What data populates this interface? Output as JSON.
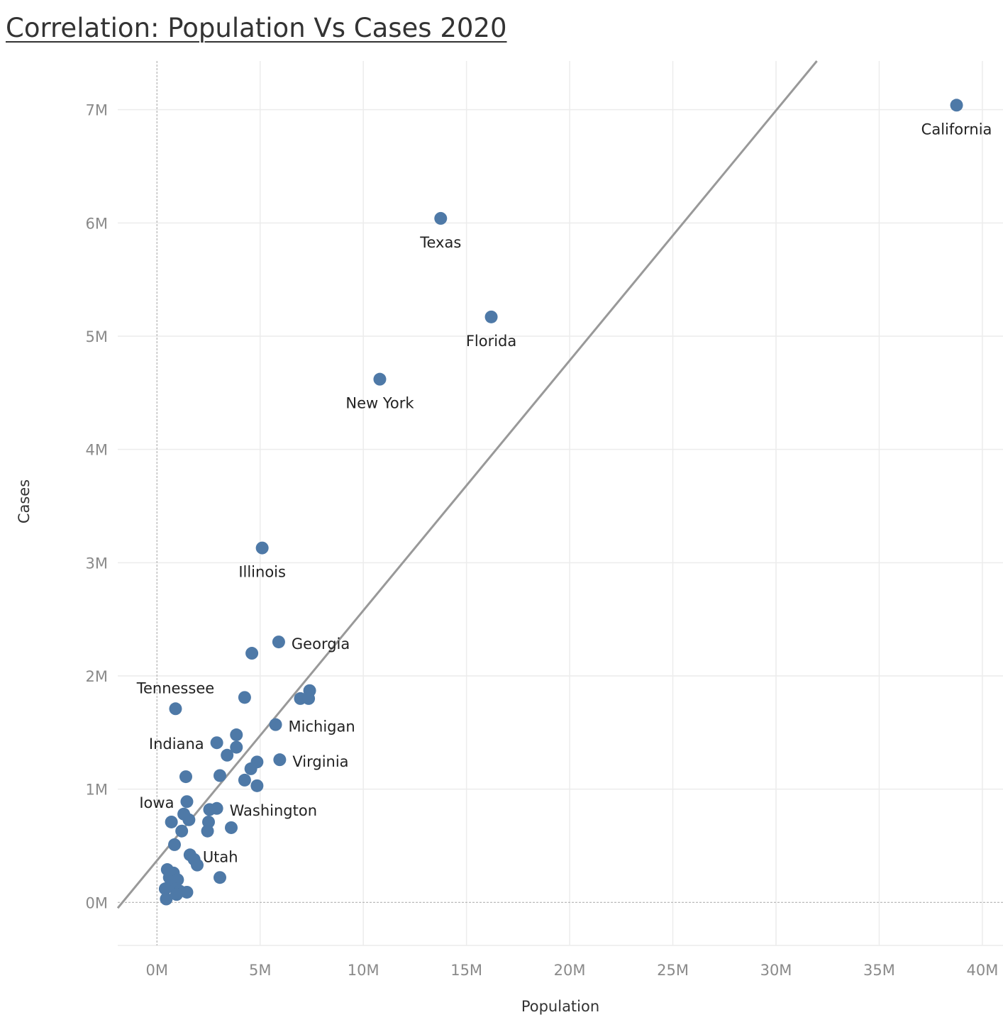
{
  "chart_data": {
    "type": "scatter",
    "title": " Correlation: Population Vs Cases 2020",
    "xlabel": "Population",
    "ylabel": "Cases",
    "xlim": [
      -1.9,
      41
    ],
    "ylim": [
      -0.38,
      7.43
    ],
    "x_ticks": [
      0,
      5,
      10,
      15,
      20,
      25,
      30,
      35,
      40
    ],
    "x_tick_labels": [
      "0M",
      "5M",
      "10M",
      "15M",
      "20M",
      "25M",
      "30M",
      "35M",
      "40M"
    ],
    "y_ticks": [
      0,
      1,
      2,
      3,
      4,
      5,
      6,
      7
    ],
    "y_tick_labels": [
      "0M",
      "1M",
      "2M",
      "3M",
      "4M",
      "5M",
      "6M",
      "7M"
    ],
    "x_gridlines": [
      5,
      10,
      15,
      20,
      25,
      30,
      35,
      40
    ],
    "y_gridlines": [
      1,
      2,
      3,
      4,
      5,
      6,
      7
    ],
    "grid": true,
    "legend": "none",
    "units": "millions",
    "colors": {
      "marker": "#4e79a7",
      "trend": "#999999",
      "grid": "#ececec",
      "zero_line": "#b3b3b3",
      "tick": "#8a8a8a",
      "axis_title": "#333333",
      "label": "#222222"
    },
    "trend_line": {
      "x": [
        -1.9,
        31.98
      ],
      "y": [
        -0.05,
        7.43
      ]
    },
    "points": [
      {
        "x": 38.75,
        "y": 7.04,
        "label": "California",
        "label_pos": "below"
      },
      {
        "x": 13.75,
        "y": 6.04,
        "label": "Texas",
        "label_pos": "below"
      },
      {
        "x": 16.2,
        "y": 5.17,
        "label": "Florida",
        "label_pos": "below"
      },
      {
        "x": 10.8,
        "y": 4.62,
        "label": "New York",
        "label_pos": "below"
      },
      {
        "x": 5.1,
        "y": 3.13,
        "label": "Illinois",
        "label_pos": "below"
      },
      {
        "x": 5.9,
        "y": 2.3,
        "label": "Georgia",
        "label_pos": "right"
      },
      {
        "x": 4.6,
        "y": 2.2
      },
      {
        "x": 7.4,
        "y": 1.87
      },
      {
        "x": 6.95,
        "y": 1.8
      },
      {
        "x": 7.35,
        "y": 1.8
      },
      {
        "x": 4.25,
        "y": 1.81
      },
      {
        "x": 0.9,
        "y": 1.71,
        "label": "Tennessee",
        "label_pos": "above"
      },
      {
        "x": 5.75,
        "y": 1.57,
        "label": "Michigan",
        "label_pos": "right"
      },
      {
        "x": 3.85,
        "y": 1.48
      },
      {
        "x": 2.9,
        "y": 1.41,
        "label": "Indiana",
        "label_pos": "left"
      },
      {
        "x": 3.85,
        "y": 1.37
      },
      {
        "x": 3.4,
        "y": 1.3
      },
      {
        "x": 5.95,
        "y": 1.26,
        "label": "Virginia",
        "label_pos": "right"
      },
      {
        "x": 4.85,
        "y": 1.24
      },
      {
        "x": 4.55,
        "y": 1.18
      },
      {
        "x": 3.05,
        "y": 1.12
      },
      {
        "x": 1.4,
        "y": 1.11
      },
      {
        "x": 4.25,
        "y": 1.08
      },
      {
        "x": 4.85,
        "y": 1.03
      },
      {
        "x": 1.45,
        "y": 0.89,
        "label": "Iowa",
        "label_pos": "upper-left"
      },
      {
        "x": 2.9,
        "y": 0.83,
        "label": "Washington",
        "label_pos": "right"
      },
      {
        "x": 2.55,
        "y": 0.82
      },
      {
        "x": 1.3,
        "y": 0.78
      },
      {
        "x": 1.55,
        "y": 0.73
      },
      {
        "x": 0.7,
        "y": 0.71
      },
      {
        "x": 2.5,
        "y": 0.71
      },
      {
        "x": 3.6,
        "y": 0.66
      },
      {
        "x": 1.2,
        "y": 0.63
      },
      {
        "x": 2.45,
        "y": 0.63
      },
      {
        "x": 0.85,
        "y": 0.51
      },
      {
        "x": 1.6,
        "y": 0.42,
        "label": "Utah",
        "label_pos": "right"
      },
      {
        "x": 1.8,
        "y": 0.38
      },
      {
        "x": 1.95,
        "y": 0.33
      },
      {
        "x": 0.5,
        "y": 0.29
      },
      {
        "x": 0.8,
        "y": 0.26
      },
      {
        "x": 3.05,
        "y": 0.22
      },
      {
        "x": 0.6,
        "y": 0.22
      },
      {
        "x": 1.0,
        "y": 0.2
      },
      {
        "x": 0.65,
        "y": 0.15
      },
      {
        "x": 0.9,
        "y": 0.12
      },
      {
        "x": 0.4,
        "y": 0.12
      },
      {
        "x": 1.1,
        "y": 0.1
      },
      {
        "x": 1.45,
        "y": 0.09
      },
      {
        "x": 0.95,
        "y": 0.07
      },
      {
        "x": 0.45,
        "y": 0.03
      }
    ]
  }
}
